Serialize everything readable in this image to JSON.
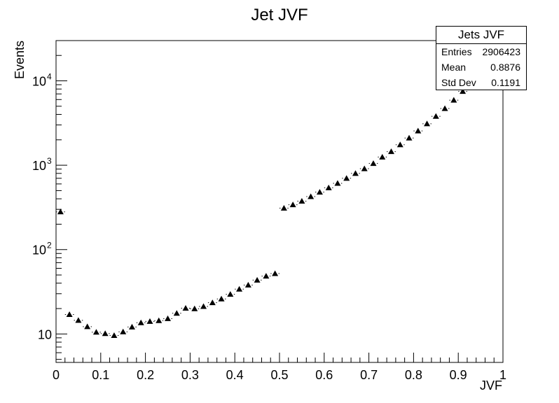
{
  "chart_data": {
    "type": "scatter",
    "title": "Jet JVF",
    "xlabel": "JVF",
    "ylabel": "Events",
    "xlim": [
      0,
      1
    ],
    "ylim": [
      4.6,
      30000
    ],
    "yscale": "log",
    "x_ticks": [
      0,
      0.1,
      0.2,
      0.3,
      0.4,
      0.5,
      0.6,
      0.7,
      0.8,
      0.9,
      1
    ],
    "x_tick_labels": [
      "0",
      "0.1",
      "0.2",
      "0.3",
      "0.4",
      "0.5",
      "0.6",
      "0.7",
      "0.8",
      "0.9",
      "1"
    ],
    "y_tick_labels": [
      {
        "value": 10,
        "base": "10",
        "exp": ""
      },
      {
        "value": 100,
        "base": "10",
        "exp": "2"
      },
      {
        "value": 1000,
        "base": "10",
        "exp": "3"
      },
      {
        "value": 10000,
        "base": "10",
        "exp": "4"
      }
    ],
    "marker": "triangle",
    "bin_width": 0.02,
    "series": [
      {
        "x": [
          0.01,
          0.03,
          0.05,
          0.07,
          0.09,
          0.11,
          0.13,
          0.15,
          0.17,
          0.19,
          0.21,
          0.23,
          0.25,
          0.27,
          0.29,
          0.31,
          0.33,
          0.35,
          0.37,
          0.39,
          0.41,
          0.43,
          0.45,
          0.47,
          0.49,
          0.51,
          0.53,
          0.55,
          0.57,
          0.59,
          0.61,
          0.63,
          0.65,
          0.67,
          0.69,
          0.71,
          0.73,
          0.75,
          0.77,
          0.79,
          0.81,
          0.83,
          0.85,
          0.87,
          0.89,
          0.91
        ],
        "y": [
          280,
          17,
          14.5,
          12.2,
          10.5,
          10.1,
          9.6,
          10.6,
          12.1,
          13.6,
          14.1,
          14.4,
          15.2,
          17.6,
          20.2,
          19.9,
          21.2,
          23.5,
          26,
          29.5,
          34,
          38,
          43.5,
          48.5,
          52,
          310,
          340,
          375,
          425,
          480,
          540,
          610,
          700,
          800,
          910,
          1050,
          1250,
          1450,
          1750,
          2100,
          2550,
          3100,
          3800,
          4700,
          5900,
          7500
        ]
      }
    ],
    "stats": {
      "title": "Jets JVF",
      "rows": [
        {
          "label": "Entries",
          "value": "2906423"
        },
        {
          "label": "Mean",
          "value": "0.8876"
        },
        {
          "label": "Std Dev",
          "value": "0.1191"
        }
      ]
    }
  }
}
